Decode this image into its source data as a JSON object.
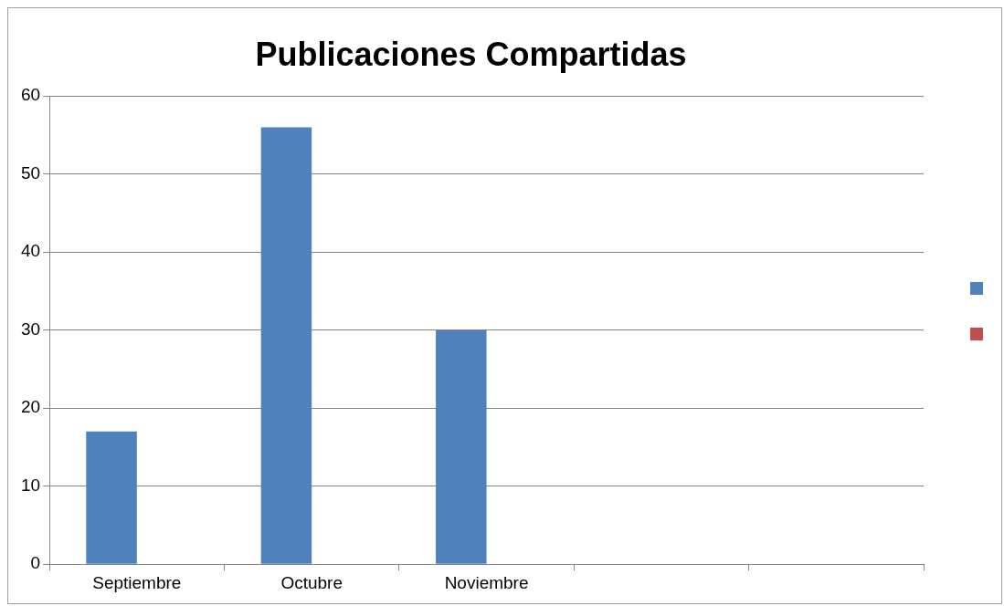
{
  "chart_data": {
    "type": "bar",
    "title": "Publicaciones Compartidas",
    "categories": [
      "Septiembre",
      "Octubre",
      "Noviembre",
      null,
      null
    ],
    "series": [
      {
        "color": "#4f81bd",
        "values": [
          17,
          56,
          30,
          null,
          null
        ]
      },
      {
        "color": "#c0504d",
        "values": [
          null,
          null,
          null,
          null,
          null
        ]
      }
    ],
    "ylim": [
      0,
      60
    ],
    "yticks": [
      0,
      10,
      20,
      30,
      40,
      50,
      60
    ],
    "grid": "y"
  }
}
